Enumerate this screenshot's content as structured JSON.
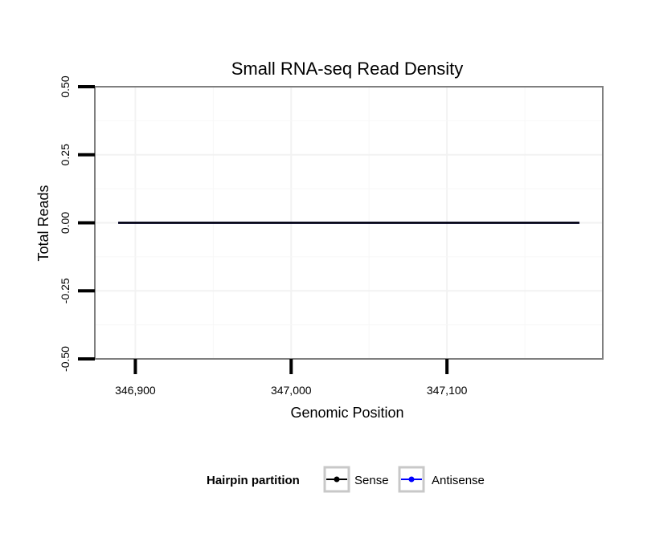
{
  "chart_data": {
    "type": "line",
    "title": "Small RNA-seq Read Density",
    "xlabel": "Genomic Position",
    "ylabel": "Total Reads",
    "xlim": [
      346874,
      347200
    ],
    "ylim": [
      -0.5,
      0.5
    ],
    "x_ticks": [
      346900,
      347000,
      347100
    ],
    "x_tick_labels": [
      "346,900",
      "347,000",
      "347,100"
    ],
    "y_ticks": [
      -0.5,
      -0.25,
      0.0,
      0.25,
      0.5
    ],
    "y_tick_labels": [
      "-0.50",
      "-0.25",
      "0.00",
      "0.25",
      "0.50"
    ],
    "grid": true,
    "legend": {
      "title": "Hairpin partition",
      "placement": "bottom",
      "entries": [
        {
          "name": "Sense",
          "color": "#000000"
        },
        {
          "name": "Antisense",
          "color": "#0000ff"
        }
      ]
    },
    "series": [
      {
        "name": "Sense",
        "color": "#000000",
        "x": [
          346889,
          347185
        ],
        "y": [
          0,
          0
        ]
      },
      {
        "name": "Antisense",
        "color": "#0000ff",
        "x": [
          346889,
          347185
        ],
        "y": [
          0,
          0
        ]
      }
    ]
  }
}
